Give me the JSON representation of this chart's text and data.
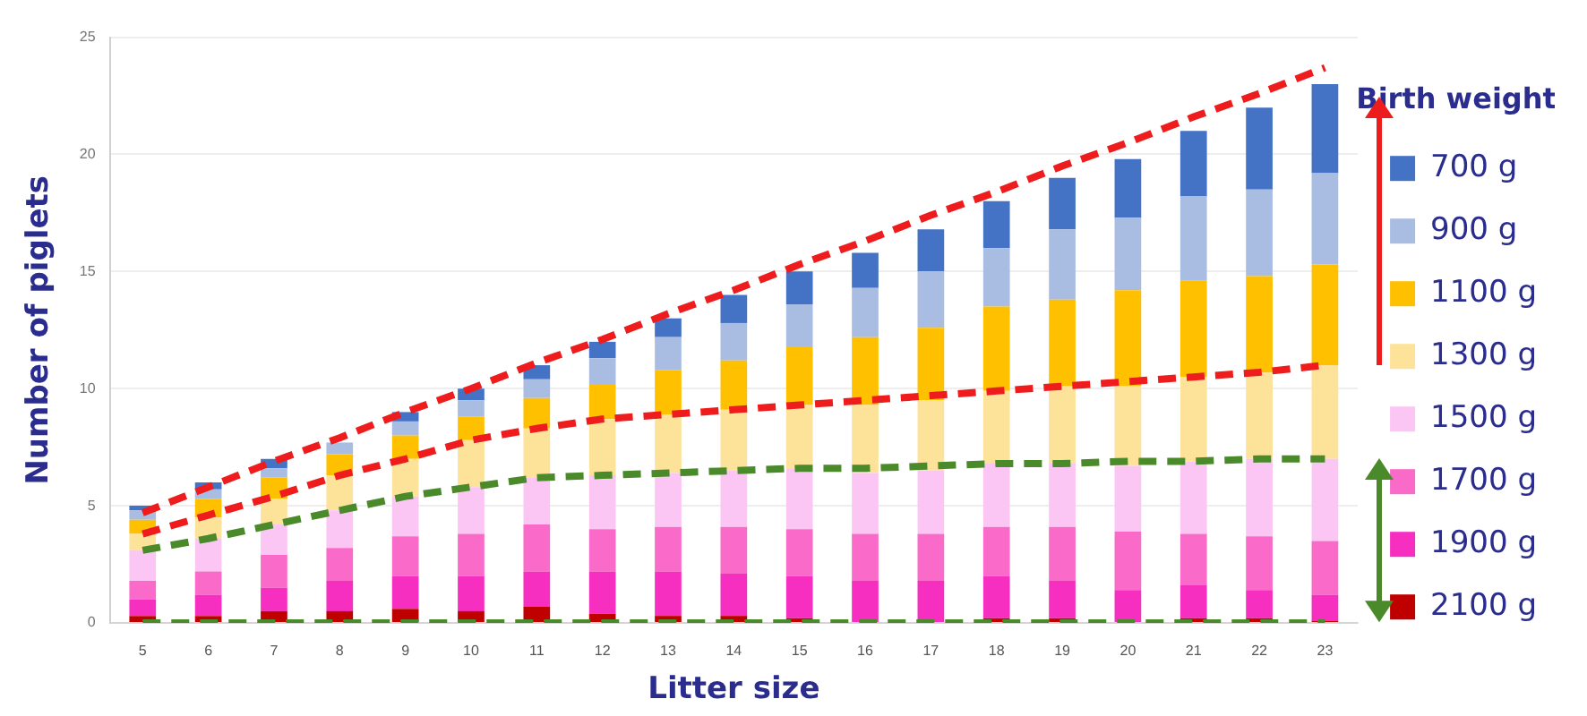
{
  "chart_data": {
    "type": "bar",
    "xlabel": "Litter size",
    "ylabel": "Number of piglets",
    "legend_title": "Birth weight",
    "categories": [
      "5",
      "6",
      "7",
      "8",
      "9",
      "10",
      "11",
      "12",
      "13",
      "14",
      "15",
      "16",
      "17",
      "18",
      "19",
      "20",
      "21",
      "22",
      "23"
    ],
    "stacked": true,
    "ylim": [
      0,
      25
    ],
    "yticks": [
      0,
      5,
      10,
      15,
      20,
      25
    ],
    "grid": "y",
    "legend": "right",
    "series": [
      {
        "name": "2100 g",
        "color": "#c00000",
        "values": [
          0.3,
          0.3,
          0.5,
          0.5,
          0.6,
          0.5,
          0.7,
          0.4,
          0.3,
          0.3,
          0.2,
          null,
          null,
          0.2,
          0.2,
          null,
          0.2,
          0.2,
          0.1
        ]
      },
      {
        "name": "1900 g",
        "color": "#f72fc0",
        "values": [
          0.7,
          0.9,
          1.0,
          1.3,
          1.4,
          1.5,
          1.5,
          1.8,
          1.9,
          1.8,
          1.8,
          1.8,
          1.8,
          1.8,
          1.6,
          1.4,
          1.4,
          1.2,
          1.1
        ]
      },
      {
        "name": "1700 g",
        "color": "#fa6ac8",
        "values": [
          0.8,
          1.0,
          1.4,
          1.4,
          1.7,
          1.8,
          2.0,
          1.8,
          1.9,
          2.0,
          2.0,
          2.0,
          2.0,
          2.1,
          2.3,
          2.5,
          2.2,
          2.3,
          2.3
        ]
      },
      {
        "name": "1500 g",
        "color": "#fcc6f4",
        "values": [
          1.3,
          1.4,
          1.3,
          1.6,
          1.7,
          2.0,
          2.0,
          2.3,
          2.3,
          2.4,
          2.6,
          2.6,
          2.7,
          2.7,
          2.7,
          2.8,
          3.1,
          3.3,
          3.5
        ]
      },
      {
        "name": "1300 g",
        "color": "#fde29a",
        "values": [
          0.7,
          0.9,
          1.1,
          1.5,
          1.6,
          2.0,
          2.1,
          2.4,
          2.5,
          2.6,
          2.7,
          2.9,
          3.0,
          3.1,
          3.3,
          3.4,
          3.6,
          3.7,
          4.0
        ]
      },
      {
        "name": "1100 g",
        "color": "#ffc000",
        "values": [
          0.6,
          0.8,
          0.9,
          0.9,
          1.0,
          1.0,
          1.3,
          1.5,
          1.9,
          2.1,
          2.5,
          2.9,
          3.1,
          3.6,
          3.7,
          4.1,
          4.1,
          4.1,
          4.3
        ]
      },
      {
        "name": "900 g",
        "color": "#a9bde3",
        "values": [
          0.4,
          0.4,
          0.4,
          0.5,
          0.6,
          0.7,
          0.8,
          1.1,
          1.4,
          1.6,
          1.8,
          2.1,
          2.4,
          2.5,
          3.0,
          3.1,
          3.6,
          3.7,
          3.9
        ]
      },
      {
        "name": "700 g",
        "color": "#4472c4",
        "values": [
          0.2,
          0.3,
          0.4,
          null,
          0.4,
          0.5,
          0.6,
          0.7,
          0.8,
          1.2,
          1.4,
          1.5,
          1.8,
          2.0,
          2.2,
          2.5,
          2.8,
          3.5,
          3.8
        ]
      },
      {
        "type": "line",
        "line_style": "dashed",
        "color": "#ee1c1c",
        "values": [
          4.7,
          5.8,
          6.9,
          7.9,
          9.0,
          10.0,
          11.1,
          12.1,
          13.2,
          14.2,
          15.3,
          16.3,
          17.4,
          18.4,
          19.5,
          20.5,
          21.6,
          22.6,
          23.7
        ]
      },
      {
        "type": "line",
        "line_style": "dashed",
        "color": "#ee1c1c",
        "values": [
          3.8,
          4.6,
          5.4,
          6.3,
          7.0,
          7.8,
          8.3,
          8.7,
          8.9,
          9.1,
          9.3,
          9.5,
          9.7,
          9.9,
          10.1,
          10.3,
          10.5,
          10.7,
          11.0
        ]
      },
      {
        "type": "line",
        "line_style": "dashed",
        "color": "#4a8a2a",
        "values": [
          3.1,
          3.6,
          4.2,
          4.8,
          5.4,
          5.8,
          6.2,
          6.3,
          6.4,
          6.5,
          6.6,
          6.6,
          6.7,
          6.8,
          6.8,
          6.9,
          6.9,
          7.0,
          7.0
        ]
      },
      {
        "type": "line",
        "line_style": "dashed",
        "color": "#4a8a2a",
        "values": [
          0,
          0,
          0,
          0,
          0,
          0,
          0,
          0,
          0,
          0,
          0,
          0,
          0,
          0,
          0,
          0,
          0,
          0,
          0
        ]
      }
    ]
  }
}
